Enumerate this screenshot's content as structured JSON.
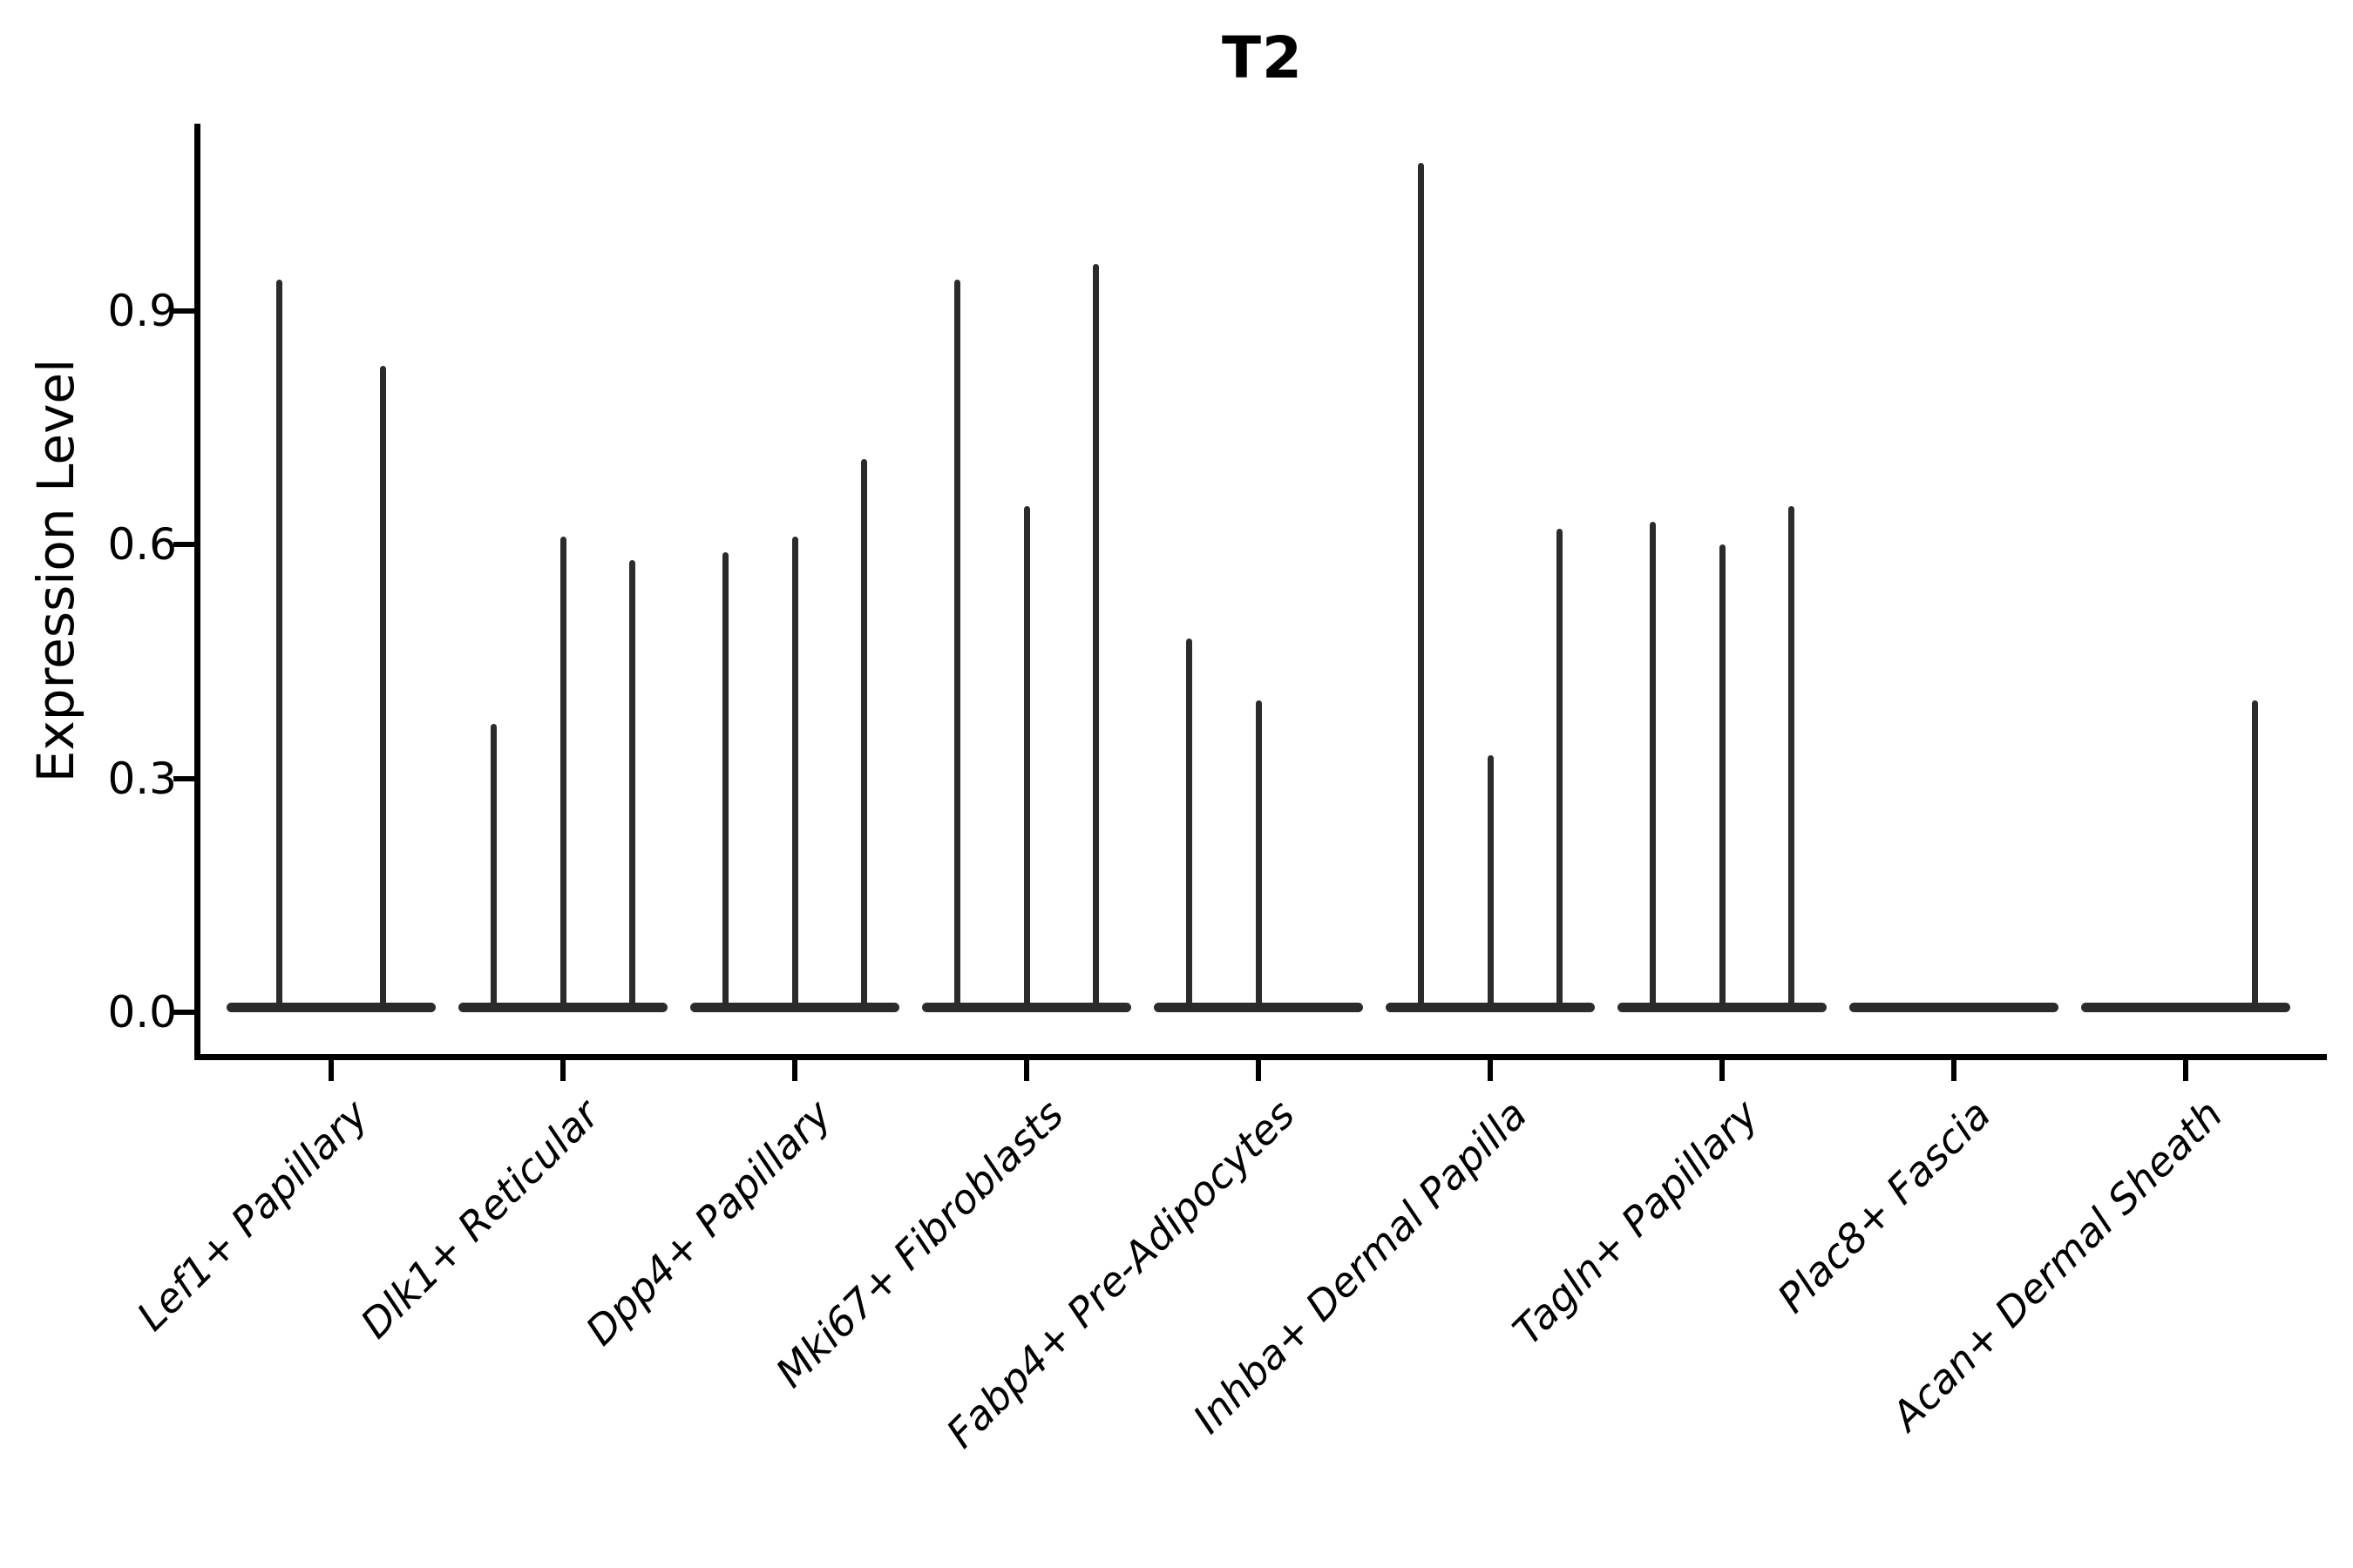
{
  "title": "T2",
  "y_axis": {
    "label": "Expression Level",
    "tick_labels": [
      "0.0",
      "0.3",
      "0.6",
      "0.9"
    ]
  },
  "x_axis": {
    "categories": [
      "Lef1+ Papillary",
      "Dlk1+ Reticular",
      "Dpp4+ Papillary",
      "Mki67+ Fibroblasts",
      "Fabp4+ Pre-Adipocytes",
      "Inhba+ Dermal Papilla",
      "Tagln+ Papillary",
      "Plac8+ Fascia",
      "Acan+ Dermal Sheath"
    ]
  },
  "colors": {
    "ink": "#000000",
    "violin": "#2b2b2b",
    "background": "#ffffff"
  },
  "chart_data": {
    "type": "violin",
    "title": "T2",
    "xlabel": "",
    "ylabel": "Expression Level",
    "ylim": [
      0,
      1.14
    ],
    "yticks": [
      0.0,
      0.3,
      0.6,
      0.9
    ],
    "grid": false,
    "legend": "none",
    "categories": [
      "Lef1+ Papillary",
      "Dlk1+ Reticular",
      "Dpp4+ Papillary",
      "Mki67+ Fibroblasts",
      "Fabp4+ Pre-Adipocytes",
      "Inhba+ Dermal Papilla",
      "Tagln+ Papillary",
      "Plac8+ Fascia",
      "Acan+ Dermal Sheath"
    ],
    "violins_per_category": [
      {
        "category": "Lef1+ Papillary",
        "spikes": [
          {
            "slot": -0.225,
            "max": 0.94
          },
          {
            "slot": 0.225,
            "max": 0.83
          }
        ]
      },
      {
        "category": "Dlk1+ Reticular",
        "spikes": [
          {
            "slot": -0.3,
            "max": 0.37
          },
          {
            "slot": 0,
            "max": 0.61
          },
          {
            "slot": 0.3,
            "max": 0.58
          }
        ]
      },
      {
        "category": "Dpp4+ Papillary",
        "spikes": [
          {
            "slot": -0.3,
            "max": 0.59
          },
          {
            "slot": 0,
            "max": 0.61
          },
          {
            "slot": 0.3,
            "max": 0.71
          }
        ]
      },
      {
        "category": "Mki67+ Fibroblasts",
        "spikes": [
          {
            "slot": -0.3,
            "max": 0.94
          },
          {
            "slot": 0,
            "max": 0.65
          },
          {
            "slot": 0.3,
            "max": 0.96
          }
        ]
      },
      {
        "category": "Fabp4+ Pre-Adipocytes",
        "spikes": [
          {
            "slot": -0.3,
            "max": 0.48
          },
          {
            "slot": 0,
            "max": 0.4
          },
          {
            "slot": 0.3,
            "max": 0
          }
        ]
      },
      {
        "category": "Inhba+ Dermal Papilla",
        "spikes": [
          {
            "slot": -0.3,
            "max": 1.09
          },
          {
            "slot": 0,
            "max": 0.33
          },
          {
            "slot": 0.3,
            "max": 0.62
          }
        ]
      },
      {
        "category": "Tagln+ Papillary",
        "spikes": [
          {
            "slot": -0.3,
            "max": 0.63
          },
          {
            "slot": 0,
            "max": 0.6
          },
          {
            "slot": 0.3,
            "max": 0.65
          }
        ]
      },
      {
        "category": "Plac8+ Fascia",
        "spikes": [
          {
            "slot": -0.3,
            "max": 0
          },
          {
            "slot": 0,
            "max": 0
          },
          {
            "slot": 0.3,
            "max": 0
          }
        ]
      },
      {
        "category": "Acan+ Dermal Sheath",
        "spikes": [
          {
            "slot": -0.3,
            "max": 0
          },
          {
            "slot": 0,
            "max": 0
          },
          {
            "slot": 0.3,
            "max": 0.4
          }
        ]
      }
    ]
  }
}
